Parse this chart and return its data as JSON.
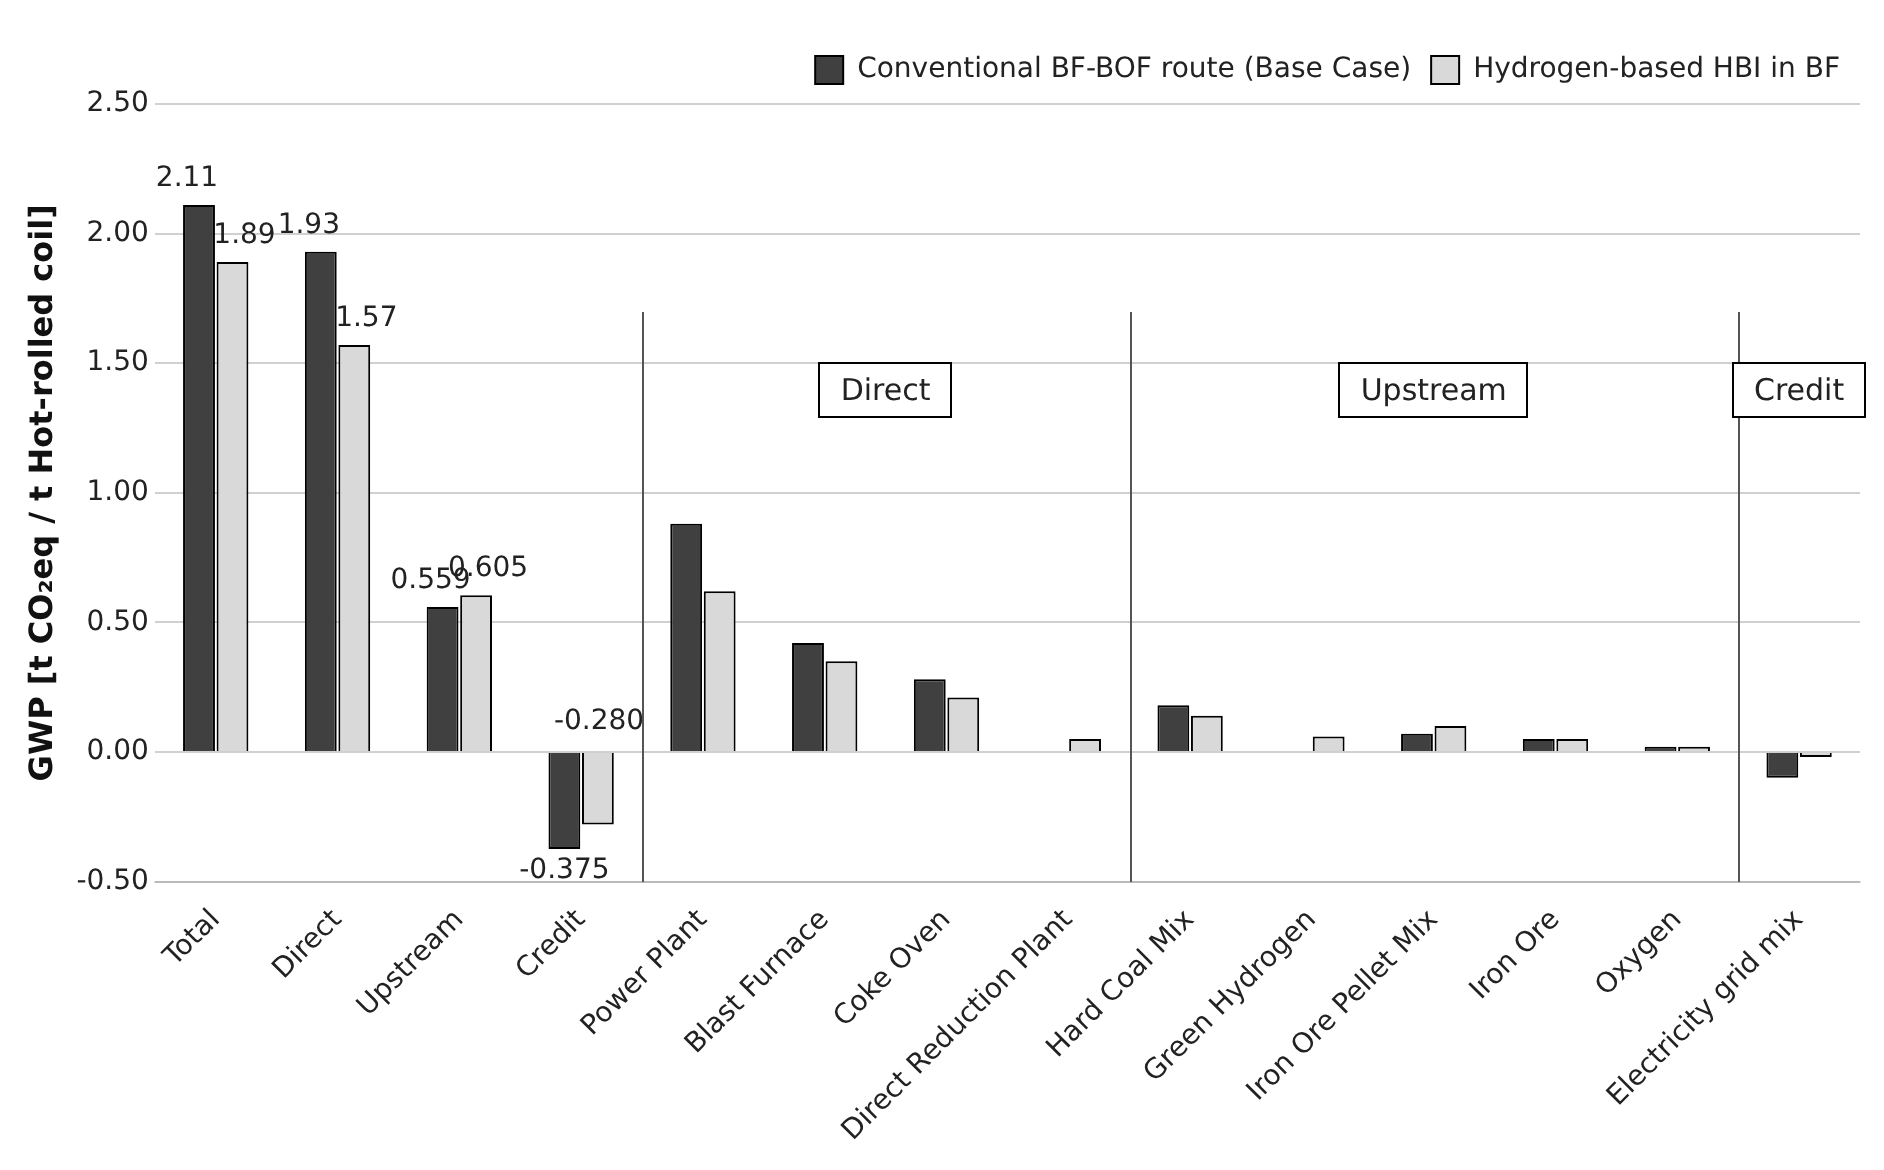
{
  "chart_data": {
    "type": "bar",
    "ylabel": "GWP [t CO₂eq / t Hot-rolled coil]",
    "categories": [
      "Total",
      "Direct",
      "Upstream",
      "Credit",
      "Power Plant",
      "Blast Furnace",
      "Coke Oven",
      "Direct Reduction Plant",
      "Hard Coal Mix",
      "Green Hydrogen",
      "Iron Ore Pellet Mix",
      "Iron Ore",
      "Oxygen",
      "Electricity grid mix"
    ],
    "series": [
      {
        "name": "Conventional BF-BOF route (Base Case)",
        "color": "#404040",
        "values": [
          2.11,
          1.93,
          0.559,
          -0.375,
          0.88,
          0.42,
          0.28,
          0,
          0.18,
          0,
          0.07,
          0.05,
          0.02,
          -0.1
        ],
        "value_labels": [
          "2.11",
          "1.93",
          "0.559",
          "-0.375",
          null,
          null,
          null,
          null,
          null,
          null,
          null,
          null,
          null,
          null
        ]
      },
      {
        "name": "Hydrogen-based HBI in BF",
        "color": "#d9d9d9",
        "values": [
          1.89,
          1.57,
          0.605,
          -0.28,
          0.62,
          0.35,
          0.21,
          0.05,
          0.14,
          0.06,
          0.1,
          0.05,
          0.02,
          -0.02
        ],
        "value_labels": [
          "1.89",
          "1.57",
          "0.605",
          "-0.280",
          null,
          null,
          null,
          null,
          null,
          null,
          null,
          null,
          null,
          null
        ]
      }
    ],
    "ylim": [
      -0.5,
      2.5
    ],
    "yticks": [
      {
        "value": -0.5,
        "label": "-0.50"
      },
      {
        "value": 0,
        "label": "0.00"
      },
      {
        "value": 0.5,
        "label": "0.50"
      },
      {
        "value": 1,
        "label": "1.00"
      },
      {
        "value": 1.5,
        "label": "1.50"
      },
      {
        "value": 2,
        "label": "2.00"
      },
      {
        "value": 2.5,
        "label": "2.50"
      }
    ],
    "grid": "y",
    "legend": "top right",
    "annotations": [
      "Direct",
      "Upstream",
      "Credit"
    ]
  }
}
